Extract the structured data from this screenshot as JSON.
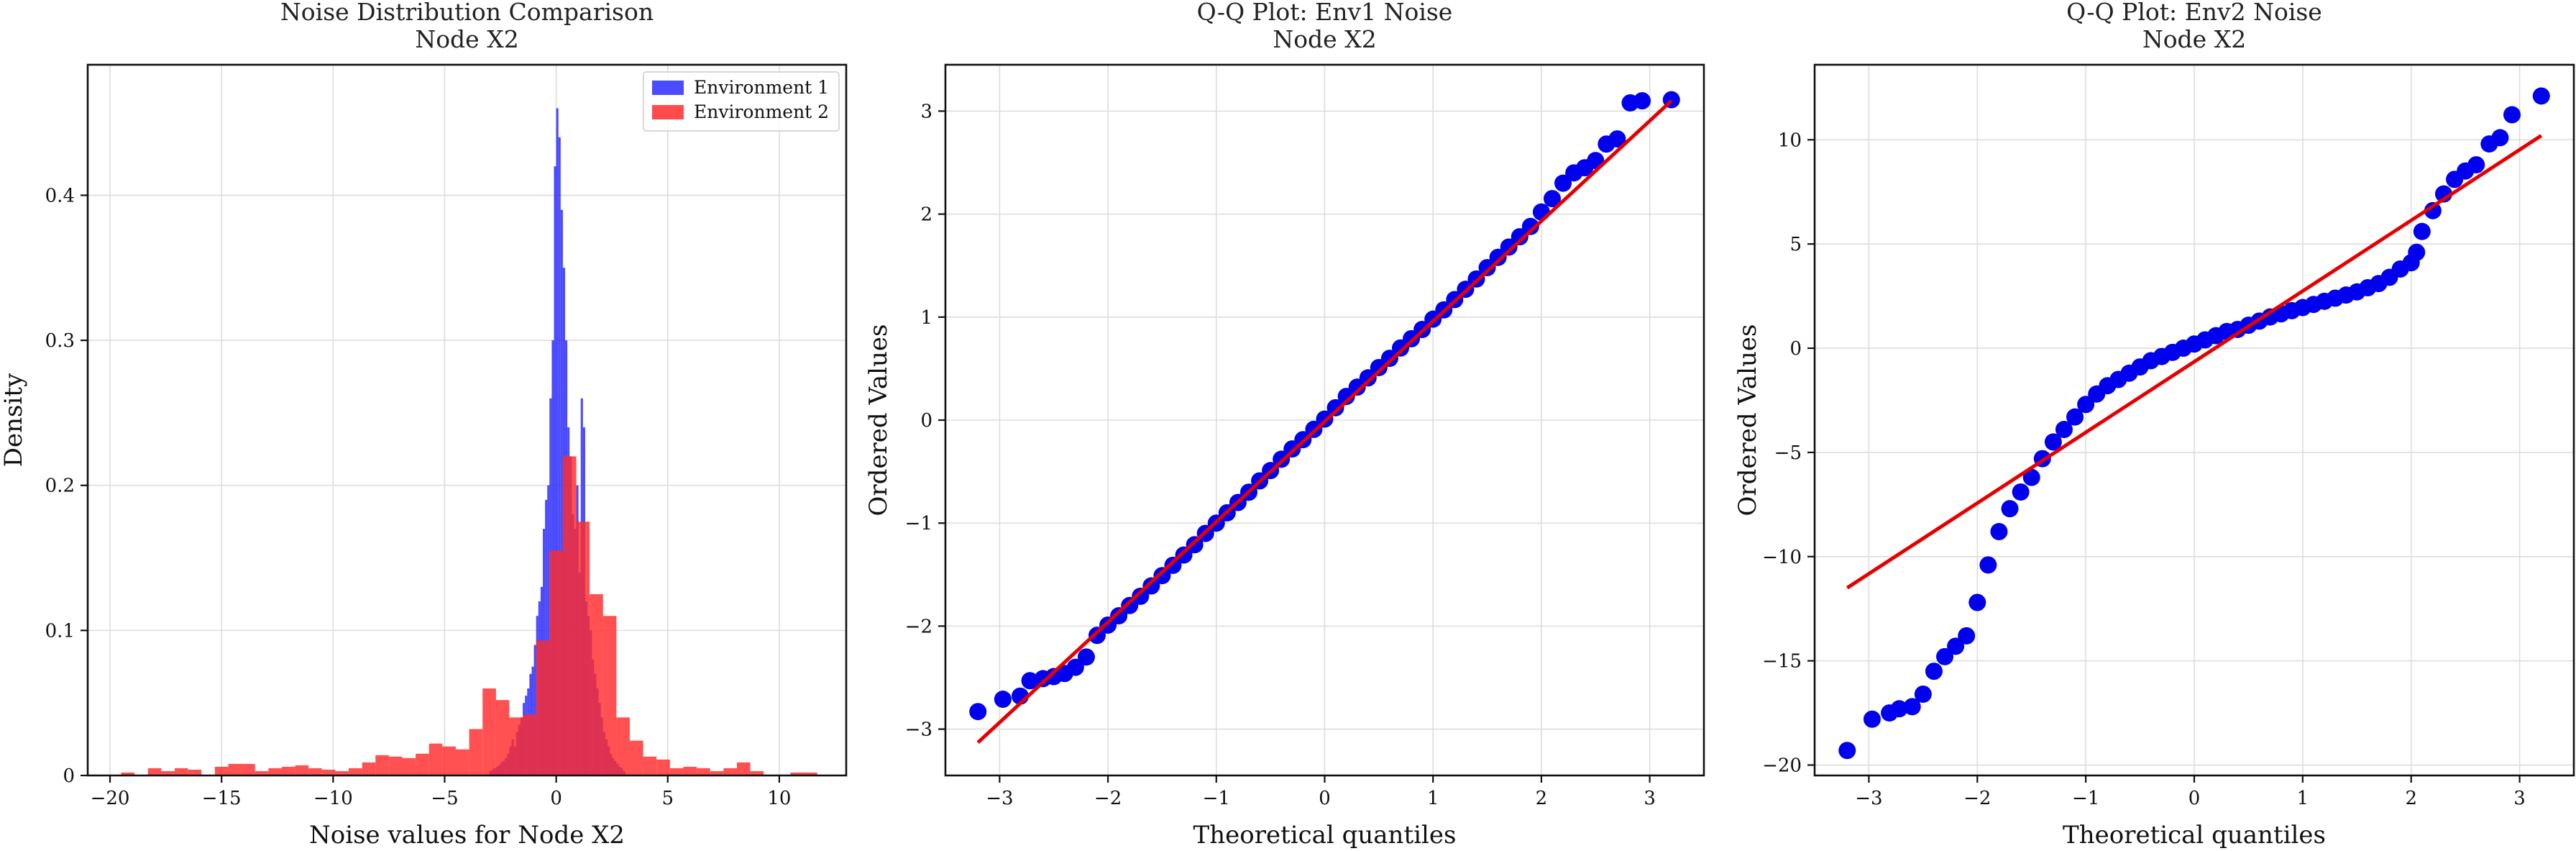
{
  "colors": {
    "env1": "#2b2bff",
    "env2": "#ff2b2b",
    "qq_points": "#0000ee",
    "qq_line": "#e60000"
  },
  "chart_data": [
    {
      "type": "histogram",
      "title": "Noise Distribution Comparison\nNode X2",
      "xlabel": "Noise values for Node X2",
      "ylabel": "Density",
      "xlim": [
        -21,
        13
      ],
      "ylim": [
        0,
        0.49
      ],
      "xticks": [
        -20,
        -15,
        -10,
        -5,
        0,
        5,
        10
      ],
      "yticks": [
        0.0,
        0.1,
        0.2,
        0.3,
        0.4
      ],
      "legend": {
        "position": "top-right",
        "entries": [
          "Environment 1",
          "Environment 2"
        ]
      },
      "grid": true,
      "series": [
        {
          "name": "Environment 1",
          "color": "#2b2bff",
          "bins": [
            [
              -3.0,
              -2.9,
              0.003
            ],
            [
              -2.9,
              -2.8,
              0.004
            ],
            [
              -2.8,
              -2.7,
              0.005
            ],
            [
              -2.7,
              -2.6,
              0.006
            ],
            [
              -2.6,
              -2.5,
              0.007
            ],
            [
              -2.5,
              -2.4,
              0.009
            ],
            [
              -2.4,
              -2.3,
              0.01
            ],
            [
              -2.3,
              -2.2,
              0.012
            ],
            [
              -2.2,
              -2.1,
              0.015
            ],
            [
              -2.1,
              -2.0,
              0.02
            ],
            [
              -2.0,
              -1.9,
              0.025
            ],
            [
              -1.9,
              -1.8,
              0.02
            ],
            [
              -1.8,
              -1.7,
              0.03
            ],
            [
              -1.7,
              -1.6,
              0.035
            ],
            [
              -1.6,
              -1.5,
              0.04
            ],
            [
              -1.5,
              -1.4,
              0.05
            ],
            [
              -1.4,
              -1.3,
              0.055
            ],
            [
              -1.3,
              -1.2,
              0.06
            ],
            [
              -1.2,
              -1.1,
              0.07
            ],
            [
              -1.1,
              -1.0,
              0.075
            ],
            [
              -1.0,
              -0.9,
              0.09
            ],
            [
              -0.9,
              -0.8,
              0.11
            ],
            [
              -0.8,
              -0.7,
              0.12
            ],
            [
              -0.7,
              -0.6,
              0.13
            ],
            [
              -0.6,
              -0.5,
              0.17
            ],
            [
              -0.5,
              -0.4,
              0.19
            ],
            [
              -0.4,
              -0.3,
              0.2
            ],
            [
              -0.3,
              -0.2,
              0.26
            ],
            [
              -0.2,
              -0.1,
              0.3
            ],
            [
              -0.1,
              0.0,
              0.42
            ],
            [
              0.0,
              0.1,
              0.46
            ],
            [
              0.1,
              0.2,
              0.44
            ],
            [
              0.2,
              0.3,
              0.39
            ],
            [
              0.3,
              0.4,
              0.35
            ],
            [
              0.4,
              0.5,
              0.3
            ],
            [
              0.5,
              0.6,
              0.24
            ],
            [
              0.6,
              0.7,
              0.22
            ],
            [
              0.7,
              0.8,
              0.18
            ],
            [
              0.8,
              0.9,
              0.17
            ],
            [
              0.9,
              1.0,
              0.2
            ],
            [
              1.0,
              1.1,
              0.14
            ],
            [
              1.1,
              1.2,
              0.26
            ],
            [
              1.2,
              1.3,
              0.24
            ],
            [
              1.3,
              1.4,
              0.12
            ],
            [
              1.4,
              1.5,
              0.11
            ],
            [
              1.5,
              1.6,
              0.1
            ],
            [
              1.6,
              1.7,
              0.08
            ],
            [
              1.7,
              1.8,
              0.07
            ],
            [
              1.8,
              1.9,
              0.06
            ],
            [
              1.9,
              2.0,
              0.05
            ],
            [
              2.0,
              2.1,
              0.04
            ],
            [
              2.1,
              2.2,
              0.03
            ],
            [
              2.2,
              2.3,
              0.025
            ],
            [
              2.3,
              2.4,
              0.02
            ],
            [
              2.4,
              2.5,
              0.015
            ],
            [
              2.5,
              2.6,
              0.012
            ],
            [
              2.6,
              2.7,
              0.01
            ],
            [
              2.7,
              2.8,
              0.008
            ],
            [
              2.8,
              2.9,
              0.006
            ],
            [
              2.9,
              3.0,
              0.005
            ],
            [
              3.0,
              3.1,
              0.003
            ]
          ]
        },
        {
          "name": "Environment 2",
          "color": "#ff2b2b",
          "bins": [
            [
              -19.5,
              -18.9,
              0.002
            ],
            [
              -18.3,
              -17.7,
              0.005
            ],
            [
              -17.7,
              -17.1,
              0.003
            ],
            [
              -17.1,
              -16.5,
              0.005
            ],
            [
              -16.5,
              -15.9,
              0.004
            ],
            [
              -15.3,
              -14.7,
              0.006
            ],
            [
              -14.7,
              -14.1,
              0.008
            ],
            [
              -14.1,
              -13.5,
              0.008
            ],
            [
              -13.5,
              -12.9,
              0.003
            ],
            [
              -12.9,
              -12.3,
              0.005
            ],
            [
              -12.3,
              -11.7,
              0.006
            ],
            [
              -11.7,
              -11.1,
              0.007
            ],
            [
              -11.1,
              -10.5,
              0.005
            ],
            [
              -10.5,
              -9.9,
              0.004
            ],
            [
              -9.9,
              -9.3,
              0.003
            ],
            [
              -9.3,
              -8.7,
              0.005
            ],
            [
              -8.7,
              -8.1,
              0.009
            ],
            [
              -8.1,
              -7.5,
              0.014
            ],
            [
              -7.5,
              -6.9,
              0.013
            ],
            [
              -6.9,
              -6.3,
              0.012
            ],
            [
              -6.3,
              -5.7,
              0.015
            ],
            [
              -5.7,
              -5.1,
              0.022
            ],
            [
              -5.1,
              -4.5,
              0.02
            ],
            [
              -4.5,
              -3.9,
              0.018
            ],
            [
              -3.9,
              -3.3,
              0.032
            ],
            [
              -3.3,
              -2.7,
              0.06
            ],
            [
              -2.7,
              -2.1,
              0.052
            ],
            [
              -2.1,
              -1.5,
              0.04
            ],
            [
              -1.5,
              -0.9,
              0.042
            ],
            [
              -0.9,
              -0.3,
              0.093
            ],
            [
              -0.3,
              0.3,
              0.155
            ],
            [
              0.3,
              0.9,
              0.22
            ],
            [
              0.9,
              1.5,
              0.175
            ],
            [
              1.5,
              2.1,
              0.125
            ],
            [
              2.1,
              2.7,
              0.11
            ],
            [
              2.7,
              3.3,
              0.04
            ],
            [
              3.3,
              3.9,
              0.024
            ],
            [
              3.9,
              4.5,
              0.013
            ],
            [
              4.5,
              5.1,
              0.011
            ],
            [
              5.1,
              5.7,
              0.005
            ],
            [
              5.7,
              6.3,
              0.006
            ],
            [
              6.3,
              6.9,
              0.005
            ],
            [
              6.9,
              7.5,
              0.003
            ],
            [
              7.5,
              8.1,
              0.005
            ],
            [
              8.1,
              8.7,
              0.009
            ],
            [
              8.7,
              9.3,
              0.003
            ],
            [
              10.5,
              11.1,
              0.002
            ],
            [
              11.1,
              11.7,
              0.002
            ]
          ]
        }
      ]
    },
    {
      "type": "scatter",
      "title": "Q-Q Plot: Env1 Noise\nNode X2",
      "xlabel": "Theoretical quantiles",
      "ylabel": "Ordered Values",
      "xlim": [
        -3.5,
        3.5
      ],
      "ylim": [
        -3.45,
        3.45
      ],
      "xticks": [
        -3,
        -2,
        -1,
        0,
        1,
        2,
        3
      ],
      "yticks": [
        -3,
        -2,
        -1,
        0,
        1,
        2,
        3
      ],
      "grid": true,
      "points": [
        [
          -3.2,
          -2.83
        ],
        [
          -2.97,
          -2.71
        ],
        [
          -2.81,
          -2.68
        ],
        [
          -2.72,
          -2.53
        ],
        [
          -2.6,
          -2.51
        ],
        [
          -2.5,
          -2.49
        ],
        [
          -2.4,
          -2.46
        ],
        [
          -2.3,
          -2.4
        ],
        [
          -2.2,
          -2.3
        ],
        [
          -2.1,
          -2.09
        ],
        [
          -2.0,
          -1.99
        ],
        [
          -1.9,
          -1.9
        ],
        [
          -1.8,
          -1.8
        ],
        [
          -1.7,
          -1.71
        ],
        [
          -1.6,
          -1.61
        ],
        [
          -1.5,
          -1.51
        ],
        [
          -1.4,
          -1.41
        ],
        [
          -1.3,
          -1.31
        ],
        [
          -1.2,
          -1.21
        ],
        [
          -1.1,
          -1.1
        ],
        [
          -1.0,
          -1.0
        ],
        [
          -0.9,
          -0.9
        ],
        [
          -0.8,
          -0.8
        ],
        [
          -0.7,
          -0.7
        ],
        [
          -0.6,
          -0.59
        ],
        [
          -0.5,
          -0.49
        ],
        [
          -0.4,
          -0.38
        ],
        [
          -0.3,
          -0.28
        ],
        [
          -0.2,
          -0.19
        ],
        [
          -0.1,
          -0.09
        ],
        [
          0.0,
          0.01
        ],
        [
          0.1,
          0.12
        ],
        [
          0.2,
          0.23
        ],
        [
          0.3,
          0.32
        ],
        [
          0.4,
          0.41
        ],
        [
          0.5,
          0.51
        ],
        [
          0.6,
          0.6
        ],
        [
          0.7,
          0.7
        ],
        [
          0.8,
          0.79
        ],
        [
          0.9,
          0.88
        ],
        [
          1.0,
          0.98
        ],
        [
          1.1,
          1.07
        ],
        [
          1.2,
          1.17
        ],
        [
          1.3,
          1.27
        ],
        [
          1.4,
          1.37
        ],
        [
          1.5,
          1.48
        ],
        [
          1.6,
          1.58
        ],
        [
          1.7,
          1.68
        ],
        [
          1.8,
          1.78
        ],
        [
          1.9,
          1.88
        ],
        [
          2.0,
          2.02
        ],
        [
          2.1,
          2.15
        ],
        [
          2.2,
          2.3
        ],
        [
          2.3,
          2.4
        ],
        [
          2.4,
          2.45
        ],
        [
          2.5,
          2.52
        ],
        [
          2.6,
          2.68
        ],
        [
          2.7,
          2.73
        ],
        [
          2.82,
          3.08
        ],
        [
          2.93,
          3.1
        ],
        [
          3.2,
          3.11
        ]
      ],
      "fit_line": [
        [
          -3.2,
          -3.13
        ],
        [
          3.2,
          3.1
        ]
      ]
    },
    {
      "type": "scatter",
      "title": "Q-Q Plot: Env2 Noise\nNode X2",
      "xlabel": "Theoretical quantiles",
      "ylabel": "Ordered Values",
      "xlim": [
        -3.5,
        3.5
      ],
      "ylim": [
        -20.5,
        13.6
      ],
      "xticks": [
        -3,
        -2,
        -1,
        0,
        1,
        2,
        3
      ],
      "yticks": [
        -20,
        -15,
        -10,
        -5,
        0,
        5,
        10
      ],
      "grid": true,
      "points": [
        [
          -3.2,
          -19.3
        ],
        [
          -2.97,
          -17.8
        ],
        [
          -2.81,
          -17.5
        ],
        [
          -2.72,
          -17.3
        ],
        [
          -2.6,
          -17.2
        ],
        [
          -2.5,
          -16.6
        ],
        [
          -2.4,
          -15.5
        ],
        [
          -2.3,
          -14.8
        ],
        [
          -2.2,
          -14.3
        ],
        [
          -2.1,
          -13.8
        ],
        [
          -2.0,
          -12.2
        ],
        [
          -1.9,
          -10.4
        ],
        [
          -1.8,
          -8.8
        ],
        [
          -1.7,
          -7.7
        ],
        [
          -1.6,
          -6.9
        ],
        [
          -1.5,
          -6.2
        ],
        [
          -1.4,
          -5.3
        ],
        [
          -1.3,
          -4.5
        ],
        [
          -1.2,
          -3.9
        ],
        [
          -1.1,
          -3.3
        ],
        [
          -1.0,
          -2.7
        ],
        [
          -0.9,
          -2.2
        ],
        [
          -0.8,
          -1.8
        ],
        [
          -0.7,
          -1.5
        ],
        [
          -0.6,
          -1.2
        ],
        [
          -0.5,
          -0.9
        ],
        [
          -0.4,
          -0.6
        ],
        [
          -0.3,
          -0.4
        ],
        [
          -0.2,
          -0.2
        ],
        [
          -0.1,
          0.0
        ],
        [
          0.0,
          0.2
        ],
        [
          0.1,
          0.4
        ],
        [
          0.2,
          0.6
        ],
        [
          0.3,
          0.8
        ],
        [
          0.4,
          0.9
        ],
        [
          0.5,
          1.1
        ],
        [
          0.6,
          1.3
        ],
        [
          0.7,
          1.5
        ],
        [
          0.8,
          1.65
        ],
        [
          0.9,
          1.8
        ],
        [
          1.0,
          1.95
        ],
        [
          1.1,
          2.1
        ],
        [
          1.2,
          2.25
        ],
        [
          1.3,
          2.4
        ],
        [
          1.4,
          2.55
        ],
        [
          1.5,
          2.7
        ],
        [
          1.6,
          2.9
        ],
        [
          1.7,
          3.1
        ],
        [
          1.8,
          3.4
        ],
        [
          1.9,
          3.8
        ],
        [
          2.0,
          4.1
        ],
        [
          2.05,
          4.6
        ],
        [
          2.1,
          5.6
        ],
        [
          2.2,
          6.6
        ],
        [
          2.3,
          7.4
        ],
        [
          2.4,
          8.1
        ],
        [
          2.5,
          8.5
        ],
        [
          2.6,
          8.8
        ],
        [
          2.72,
          9.8
        ],
        [
          2.82,
          10.1
        ],
        [
          2.93,
          11.2
        ],
        [
          3.2,
          12.1
        ]
      ],
      "fit_line": [
        [
          -3.2,
          -11.5
        ],
        [
          3.2,
          10.2
        ]
      ]
    }
  ]
}
